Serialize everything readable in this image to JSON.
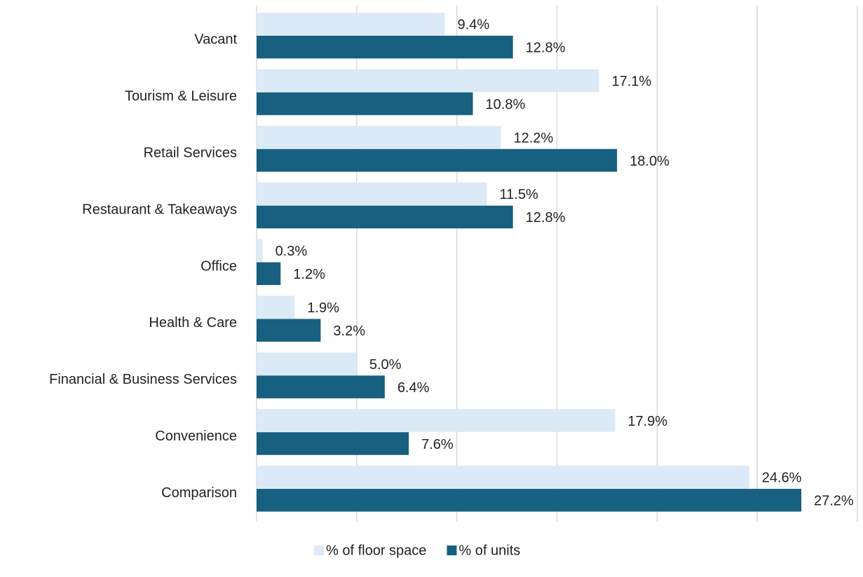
{
  "chart_data": {
    "type": "hbar",
    "categories": [
      "Vacant",
      "Tourism & Leisure",
      "Retail Services",
      "Restaurant & Takeaways",
      "Office",
      "Health & Care",
      "Financial & Business Services",
      "Convenience",
      "Comparison"
    ],
    "series": [
      {
        "name": "% of floor space",
        "color": "#dce9f6",
        "values": [
          9.4,
          17.1,
          12.2,
          11.5,
          0.3,
          1.9,
          5.0,
          17.9,
          24.6
        ],
        "value_labels": [
          "9.4%",
          "17.1%",
          "12.2%",
          "11.5%",
          "0.3%",
          "1.9%",
          "5.0%",
          "17.9%",
          "24.6%"
        ]
      },
      {
        "name": "% of units",
        "color": "#17607f",
        "values": [
          12.8,
          10.8,
          18.0,
          12.8,
          1.2,
          3.2,
          6.4,
          7.6,
          27.2
        ],
        "value_labels": [
          "12.8%",
          "10.8%",
          "18.0%",
          "12.8%",
          "1.2%",
          "3.2%",
          "6.4%",
          "7.6%",
          "27.2%"
        ]
      }
    ],
    "xlim": [
      0,
      30
    ],
    "xticks": [
      0,
      5,
      10,
      15,
      20,
      25,
      30
    ],
    "grid": true,
    "legend": "bottom"
  }
}
